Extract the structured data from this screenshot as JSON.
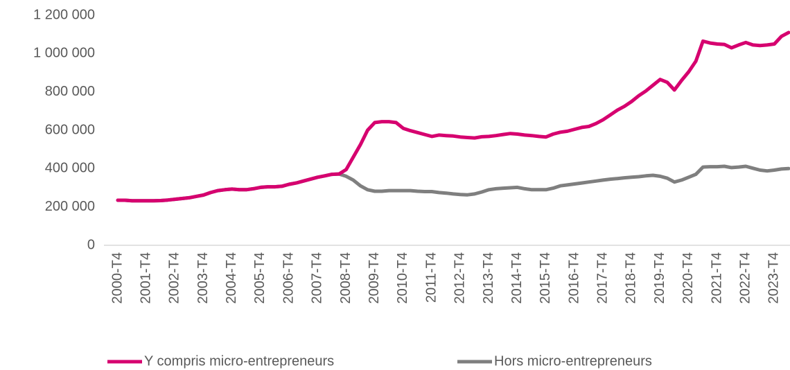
{
  "chart_data": {
    "type": "line",
    "categories": [
      "2000-T4",
      null,
      null,
      null,
      "2001-T4",
      null,
      null,
      null,
      "2002-T4",
      null,
      null,
      null,
      "2003-T4",
      null,
      null,
      null,
      "2004-T4",
      null,
      null,
      null,
      "2005-T4",
      null,
      null,
      null,
      "2006-T4",
      null,
      null,
      null,
      "2007-T4",
      null,
      null,
      null,
      "2008-T4",
      null,
      null,
      null,
      "2009-T4",
      null,
      null,
      null,
      "2010-T4",
      null,
      null,
      null,
      "2011-T4",
      null,
      null,
      null,
      "2012-T4",
      null,
      null,
      null,
      "2013-T4",
      null,
      null,
      null,
      "2014-T4",
      null,
      null,
      null,
      "2015-T4",
      null,
      null,
      null,
      "2016-T4",
      null,
      null,
      null,
      "2017-T4",
      null,
      null,
      null,
      "2018-T4",
      null,
      null,
      null,
      "2019-T4",
      null,
      null,
      null,
      "2020-T4",
      null,
      null,
      null,
      "2021-T4",
      null,
      null,
      null,
      "2022-T4",
      null,
      null,
      null,
      "2023-T4",
      null,
      null
    ],
    "series": [
      {
        "name": "Y compris micro-entrepreneurs",
        "color": "#d6006f",
        "values": [
          235000,
          235000,
          232000,
          232000,
          232000,
          232000,
          233000,
          236000,
          240000,
          244000,
          248000,
          255000,
          262000,
          275000,
          285000,
          290000,
          293000,
          290000,
          290000,
          295000,
          302000,
          305000,
          305000,
          308000,
          318000,
          325000,
          335000,
          345000,
          355000,
          362000,
          370000,
          372000,
          395000,
          460000,
          525000,
          600000,
          640000,
          645000,
          645000,
          640000,
          610000,
          598000,
          588000,
          578000,
          568000,
          575000,
          572000,
          570000,
          565000,
          562000,
          560000,
          566000,
          568000,
          572000,
          578000,
          583000,
          580000,
          575000,
          572000,
          568000,
          565000,
          580000,
          590000,
          595000,
          605000,
          615000,
          620000,
          635000,
          655000,
          680000,
          705000,
          725000,
          750000,
          780000,
          805000,
          835000,
          865000,
          850000,
          810000,
          860000,
          905000,
          960000,
          1065000,
          1055000,
          1050000,
          1048000,
          1030000,
          1045000,
          1058000,
          1045000,
          1042000,
          1045000,
          1050000,
          1090000,
          1110000
        ]
      },
      {
        "name": "Hors micro-entrepreneurs",
        "color": "#7f7f7f",
        "values": [
          235000,
          235000,
          232000,
          232000,
          232000,
          232000,
          233000,
          236000,
          240000,
          244000,
          248000,
          255000,
          262000,
          275000,
          285000,
          290000,
          293000,
          290000,
          290000,
          295000,
          302000,
          305000,
          305000,
          308000,
          318000,
          325000,
          335000,
          345000,
          355000,
          362000,
          370000,
          372000,
          360000,
          340000,
          310000,
          290000,
          282000,
          282000,
          285000,
          285000,
          285000,
          285000,
          282000,
          280000,
          280000,
          275000,
          272000,
          268000,
          265000,
          263000,
          268000,
          278000,
          290000,
          295000,
          298000,
          300000,
          302000,
          295000,
          290000,
          290000,
          290000,
          298000,
          310000,
          315000,
          320000,
          325000,
          330000,
          335000,
          340000,
          345000,
          348000,
          352000,
          355000,
          358000,
          362000,
          365000,
          360000,
          350000,
          330000,
          340000,
          355000,
          370000,
          408000,
          410000,
          410000,
          412000,
          405000,
          408000,
          412000,
          402000,
          392000,
          388000,
          392000,
          398000,
          400000
        ]
      }
    ],
    "ylim": [
      0,
      1200000
    ],
    "yticks": [
      0,
      {
        "value": 200000,
        "label": "200 000"
      },
      {
        "value": 400000,
        "label": "400 000"
      },
      {
        "value": 600000,
        "label": "600 000"
      },
      {
        "value": 800000,
        "label": "800 000"
      },
      {
        "value": 1000000,
        "label": "1 000 000"
      },
      {
        "value": 1200000,
        "label": "1 200 000"
      }
    ],
    "grid": false,
    "legend": "bottom"
  }
}
